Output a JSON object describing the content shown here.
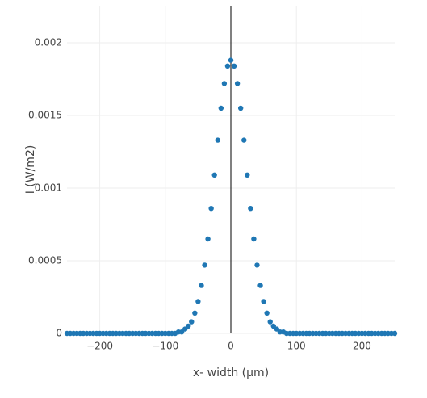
{
  "chart_data": {
    "type": "scatter",
    "x_label": "x- width (µm)",
    "y_label": "I (W/m2)",
    "x": [
      -250,
      -245,
      -240,
      -235,
      -230,
      -225,
      -220,
      -215,
      -210,
      -205,
      -200,
      -195,
      -190,
      -185,
      -180,
      -175,
      -170,
      -165,
      -160,
      -155,
      -150,
      -145,
      -140,
      -135,
      -130,
      -125,
      -120,
      -115,
      -110,
      -105,
      -100,
      -95,
      -90,
      -85,
      -80,
      -75,
      -70,
      -65,
      -60,
      -55,
      -50,
      -45,
      -40,
      -35,
      -30,
      -25,
      -20,
      -15,
      -10,
      -5,
      0,
      5,
      10,
      15,
      20,
      25,
      30,
      35,
      40,
      45,
      50,
      55,
      60,
      65,
      70,
      75,
      80,
      85,
      90,
      95,
      100,
      105,
      110,
      115,
      120,
      125,
      130,
      135,
      140,
      145,
      150,
      155,
      160,
      165,
      170,
      175,
      180,
      185,
      190,
      195,
      200,
      205,
      210,
      215,
      220,
      225,
      230,
      235,
      240,
      245,
      250
    ],
    "series": [
      {
        "color": "#1f77b4",
        "values": [
          0,
          0,
          0,
          0,
          0,
          0,
          0,
          0,
          0,
          0,
          0,
          0,
          0,
          0,
          0,
          0,
          0,
          0,
          0,
          0,
          0,
          0,
          0,
          0,
          0,
          0,
          0,
          0,
          0,
          0,
          0,
          0,
          0,
          0,
          1e-05,
          1e-05,
          3e-05,
          5e-05,
          8e-05,
          0.00014,
          0.00022,
          0.00033,
          0.00047,
          0.00065,
          0.00086,
          0.00109,
          0.00133,
          0.00155,
          0.00172,
          0.00184,
          0.00188,
          0.00184,
          0.00172,
          0.00155,
          0.00133,
          0.00109,
          0.00086,
          0.00065,
          0.00047,
          0.00033,
          0.00022,
          0.00014,
          8e-05,
          5e-05,
          3e-05,
          1e-05,
          1e-05,
          0,
          0,
          0,
          0,
          0,
          0,
          0,
          0,
          0,
          0,
          0,
          0,
          0,
          0,
          0,
          0,
          0,
          0,
          0,
          0,
          0,
          0,
          0,
          0,
          0,
          0,
          0,
          0,
          0,
          0,
          0,
          0,
          0,
          0
        ]
      }
    ],
    "xlim": [
      -250,
      250
    ],
    "xticks": [
      {
        "value": -200,
        "label": "−200"
      },
      {
        "value": -100,
        "label": "−100"
      },
      0,
      100,
      200
    ],
    "ylim": [
      0,
      0.00225
    ],
    "yticks": [
      0,
      0.0005,
      0.001,
      0.0015,
      0.002
    ],
    "grid": true
  }
}
